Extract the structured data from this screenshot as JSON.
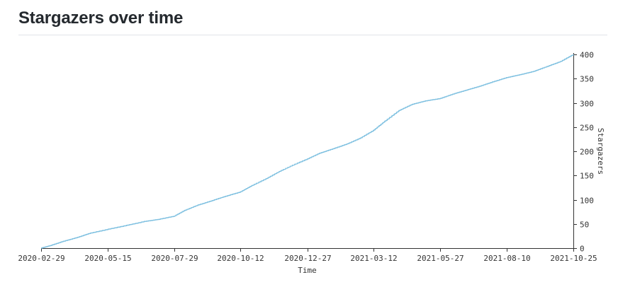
{
  "page": {
    "title": "Stargazers over time"
  },
  "colors": {
    "line": "#7ec0e0",
    "axis": "#333333",
    "text": "#333333"
  },
  "chart_data": {
    "type": "line",
    "title": "Stargazers over time",
    "xlabel": "Time",
    "ylabel": "Stargazers",
    "x_ticks": [
      "2020-02-29",
      "2020-05-15",
      "2020-07-29",
      "2020-10-12",
      "2020-12-27",
      "2021-03-12",
      "2021-05-27",
      "2021-08-10",
      "2021-10-25"
    ],
    "y_ticks": [
      0,
      50,
      100,
      150,
      200,
      250,
      300,
      350,
      400
    ],
    "ylim": [
      0,
      400
    ],
    "x_range": [
      "2020-02-29",
      "2021-10-25"
    ],
    "y_axis_side": "right",
    "grid": false,
    "series": [
      {
        "name": "Stargazers",
        "x": [
          "2020-02-29",
          "2020-03-10",
          "2020-03-25",
          "2020-04-10",
          "2020-04-25",
          "2020-05-15",
          "2020-06-05",
          "2020-06-25",
          "2020-07-10",
          "2020-07-29",
          "2020-08-10",
          "2020-08-25",
          "2020-09-10",
          "2020-09-25",
          "2020-10-12",
          "2020-10-25",
          "2020-11-10",
          "2020-11-25",
          "2020-12-10",
          "2020-12-27",
          "2021-01-10",
          "2021-01-25",
          "2021-02-10",
          "2021-02-25",
          "2021-03-12",
          "2021-03-25",
          "2021-04-10",
          "2021-04-25",
          "2021-05-10",
          "2021-05-27",
          "2021-06-10",
          "2021-06-25",
          "2021-07-10",
          "2021-07-25",
          "2021-08-10",
          "2021-08-25",
          "2021-09-10",
          "2021-09-25",
          "2021-10-10",
          "2021-10-25"
        ],
        "values": [
          0,
          5,
          14,
          22,
          31,
          39,
          47,
          55,
          59,
          66,
          78,
          89,
          98,
          107,
          116,
          129,
          143,
          158,
          171,
          184,
          196,
          205,
          215,
          227,
          243,
          262,
          284,
          297,
          304,
          309,
          318,
          326,
          334,
          343,
          352,
          358,
          365,
          375,
          385,
          400
        ]
      }
    ]
  }
}
